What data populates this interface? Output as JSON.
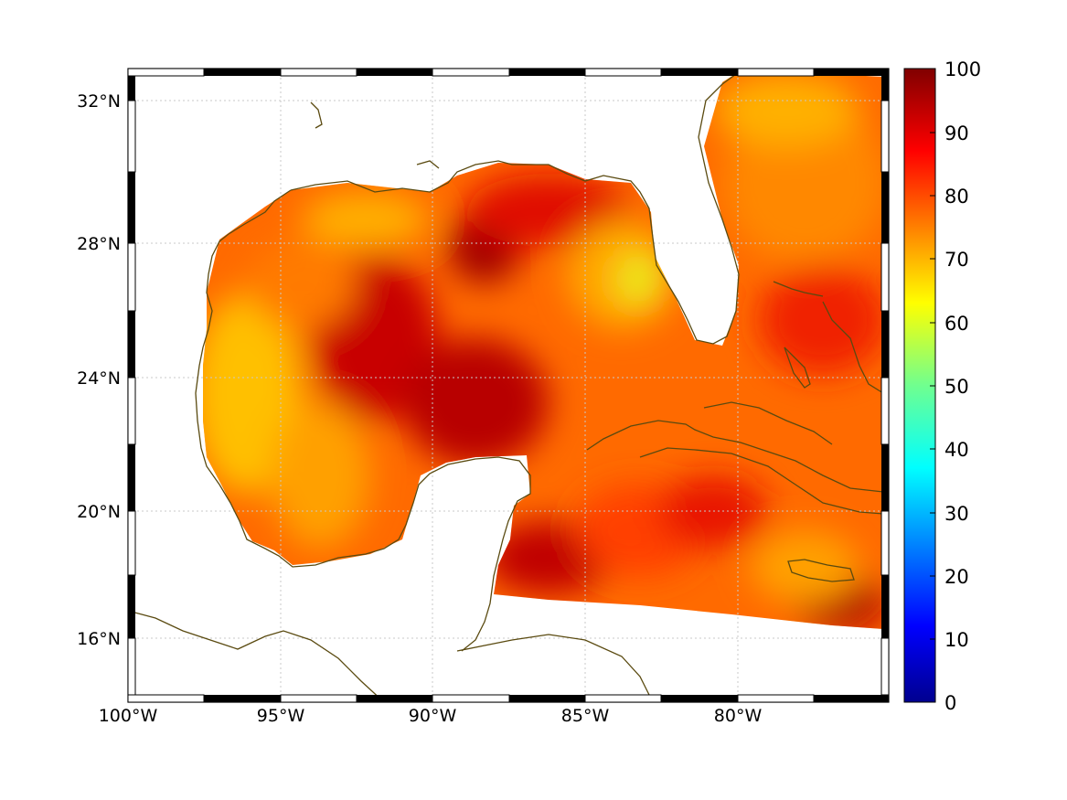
{
  "map": {
    "region": "Gulf of Mexico and western Caribbean",
    "projection": "equidistant-cylindrical",
    "lon_range": [
      -100,
      -75
    ],
    "lat_range": [
      14.5,
      33
    ],
    "grid": true,
    "coastline_color": "#5a4a10",
    "ocean_field_colors": {
      "low": "#ffd000",
      "mid": "#ff8c00",
      "high": "#d10000",
      "max": "#a00000"
    },
    "lon_ticks": [
      {
        "lon": -100,
        "label": "100°W"
      },
      {
        "lon": -95,
        "label": "95°W"
      },
      {
        "lon": -90,
        "label": "90°W"
      },
      {
        "lon": -85,
        "label": "85°W"
      },
      {
        "lon": -80,
        "label": "80°W"
      }
    ],
    "lat_ticks": [
      {
        "lat": 32,
        "label": "32°N"
      },
      {
        "lat": 28,
        "label": "28°N"
      },
      {
        "lat": 24,
        "label": "24°N"
      },
      {
        "lat": 20,
        "label": "20°N"
      },
      {
        "lat": 16,
        "label": "16°N"
      }
    ]
  },
  "colorbar": {
    "range": [
      0,
      100
    ],
    "colormap": "jet",
    "ticks": [
      "0",
      "10",
      "20",
      "30",
      "40",
      "50",
      "60",
      "70",
      "80",
      "90",
      "100"
    ]
  }
}
